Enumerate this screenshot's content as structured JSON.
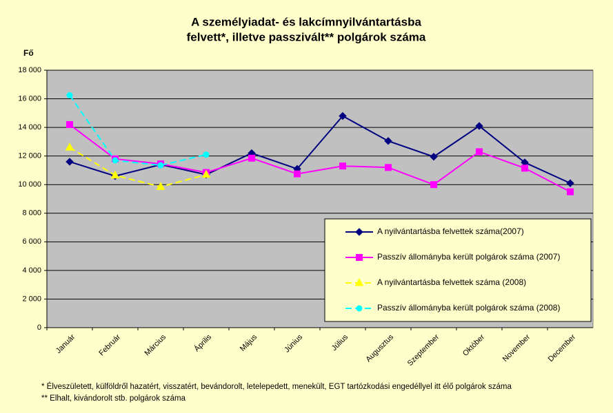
{
  "chart_data": {
    "type": "line",
    "title": [
      "A személyiadat- és lakcímnyilvántartásba",
      "felvett*, illetve passzivált** polgárok száma"
    ],
    "y_label": "Fő",
    "categories": [
      "Január",
      "Február",
      "Március",
      "Április",
      "Május",
      "Június",
      "Július",
      "Augusztus",
      "Szeptember",
      "Október",
      "November",
      "December"
    ],
    "series": [
      {
        "name": "A nyilvántartásba felvettek száma(2007)",
        "color": "#000080",
        "marker": "diamond",
        "dashed": false,
        "values": [
          11600,
          10600,
          11400,
          10700,
          12200,
          11100,
          14800,
          13050,
          11950,
          14100,
          11550,
          10100
        ]
      },
      {
        "name": "Passzív állományba került polgárok száma (2007)",
        "color": "#ff00ff",
        "marker": "square",
        "dashed": false,
        "values": [
          14200,
          11800,
          11450,
          10850,
          11850,
          10750,
          11300,
          11200,
          10000,
          12300,
          11150,
          9500
        ]
      },
      {
        "name": "A nyilvántartásba felvettek száma (2008)",
        "color": "#ffff00",
        "marker": "triangle",
        "dashed": true,
        "values": [
          12600,
          10650,
          9850,
          10700,
          null,
          null,
          null,
          null,
          null,
          null,
          null,
          null
        ]
      },
      {
        "name": "Passzív állományba került polgárok száma (2008)",
        "color": "#00ffff",
        "marker": "circle",
        "dashed": true,
        "values": [
          16250,
          11700,
          11350,
          12100,
          null,
          null,
          null,
          null,
          null,
          null,
          null,
          null
        ]
      }
    ],
    "ylim": [
      0,
      18000
    ],
    "yticks": [
      0,
      {
        "value": 2000,
        "label": "2 000"
      },
      {
        "value": 4000,
        "label": "4 000"
      },
      {
        "value": 6000,
        "label": "6 000"
      },
      {
        "value": 8000,
        "label": "8 000"
      },
      {
        "value": 10000,
        "label": "10 000"
      },
      {
        "value": 12000,
        "label": "12 000"
      },
      {
        "value": 14000,
        "label": "14 000"
      },
      {
        "value": 16000,
        "label": "16 000"
      },
      {
        "value": 18000,
        "label": "18 000"
      }
    ],
    "grid": true,
    "legend": "lower-right",
    "footnotes": [
      "* Élveszületett, külföldről hazatért, visszatért, bevándorolt, letelepedett, menekült, EGT tartózkodási engedéllyel itt élő  polgárok száma",
      "** Elhalt, kivándorolt stb. polgárok száma"
    ]
  }
}
